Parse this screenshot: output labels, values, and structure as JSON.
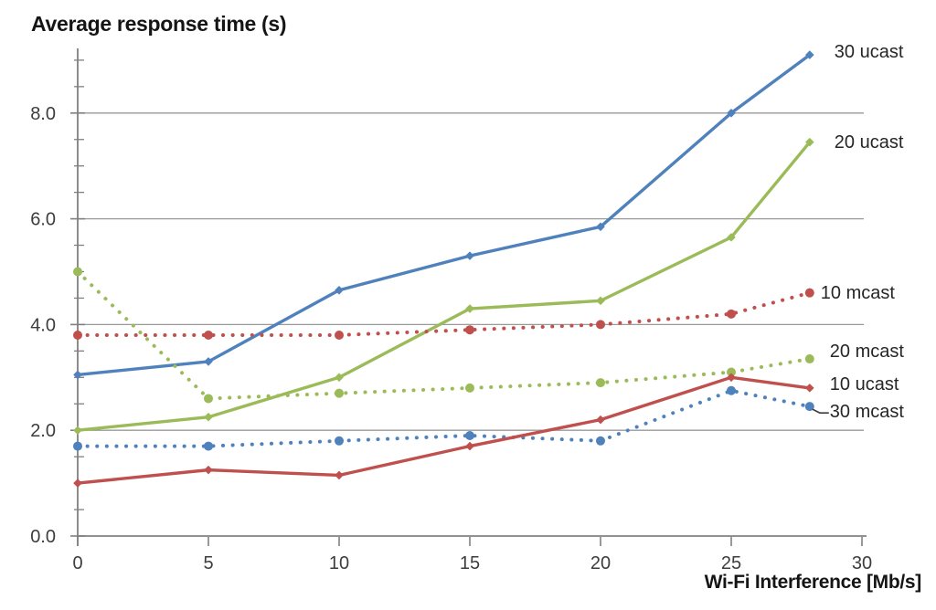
{
  "chart_data": {
    "type": "line",
    "title": "Average response time (s)",
    "xlabel": "Wi-Fi Interference [Mb/s]",
    "x": [
      0,
      5,
      10,
      15,
      20,
      25,
      28
    ],
    "x_ticks": [
      "0",
      "5",
      "10",
      "15",
      "20",
      "25",
      "30"
    ],
    "x_tick_values": [
      0,
      5,
      10,
      15,
      20,
      25,
      30
    ],
    "y_ticks": [
      "0.0",
      "2.0",
      "4.0",
      "6.0",
      "8.0"
    ],
    "y_tick_values": [
      0,
      2,
      4,
      6,
      8
    ],
    "xlim": [
      0,
      30
    ],
    "ylim": [
      0,
      9.25
    ],
    "y_minor_tick_step": 0.5,
    "grid": "horizontal-major-only",
    "legend_position": "line-end-labels-right",
    "axis_color": "#808080",
    "grid_color": "#9a9a9a",
    "series": [
      {
        "name": "30 ucast",
        "color": "#4F81BD",
        "line": "solid",
        "marker": "diamond",
        "values": [
          3.05,
          3.3,
          4.65,
          5.3,
          5.85,
          8.0,
          9.1
        ],
        "label_offset": [
          27,
          -3
        ],
        "leader": false
      },
      {
        "name": "20 ucast",
        "color": "#9BBB59",
        "line": "solid",
        "marker": "diamond",
        "values": [
          2.0,
          2.25,
          3.0,
          4.3,
          4.45,
          5.65,
          7.45
        ],
        "label_offset": [
          27,
          0
        ],
        "leader": false
      },
      {
        "name": "10 mcast",
        "color": "#C0504D",
        "line": "dotted",
        "marker": "circle",
        "values": [
          3.8,
          3.8,
          3.8,
          3.9,
          4.0,
          4.2,
          4.6
        ],
        "label_offset": [
          12,
          0
        ],
        "leader": false
      },
      {
        "name": "20 mcast",
        "color": "#9BBB59",
        "line": "dotted",
        "marker": "circle",
        "values": [
          5.0,
          2.6,
          2.7,
          2.8,
          2.9,
          3.1,
          3.35
        ],
        "label_offset": [
          22,
          -8
        ],
        "leader": false
      },
      {
        "name": "30 mcast",
        "color": "#4F81BD",
        "line": "dotted",
        "marker": "circle",
        "values": [
          1.7,
          1.7,
          1.8,
          1.9,
          1.8,
          2.75,
          2.45
        ],
        "label_offset": [
          22,
          6
        ],
        "leader": true
      },
      {
        "name": "10 ucast",
        "color": "#C0504D",
        "line": "solid",
        "marker": "diamond",
        "values": [
          1.0,
          1.25,
          1.15,
          1.7,
          2.2,
          3.0,
          2.8
        ],
        "label_offset": [
          22,
          -4
        ],
        "leader": false
      }
    ]
  }
}
